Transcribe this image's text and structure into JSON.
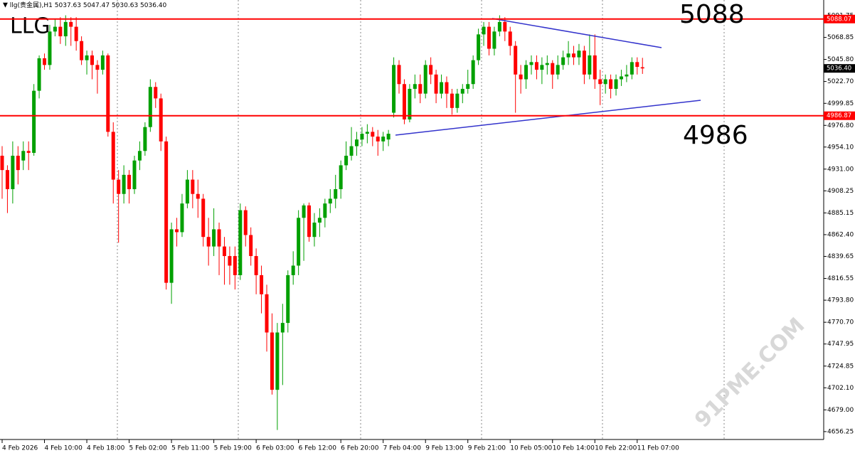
{
  "chart_data": {
    "type": "candlestick",
    "symbol": "llg(贵金属),H1",
    "last_bar_labels": [
      "5037.63",
      "5047.47",
      "5030.63",
      "5036.40"
    ],
    "annotation": "LLG",
    "watermark": "91PME.COM",
    "up_color": "#00a000",
    "down_color": "#ff0000",
    "categories": [
      "4 Feb 2026",
      null,
      null,
      null,
      null,
      null,
      null,
      null,
      "4 Feb 10:00",
      null,
      null,
      null,
      null,
      null,
      null,
      null,
      "4 Feb 18:00",
      null,
      null,
      null,
      null,
      null,
      null,
      null,
      "5 Feb 02:00",
      null,
      null,
      null,
      null,
      null,
      null,
      null,
      "5 Feb 11:00",
      null,
      null,
      null,
      null,
      null,
      null,
      null,
      "5 Feb 19:00",
      null,
      null,
      null,
      null,
      null,
      null,
      null,
      "6 Feb 03:00",
      null,
      null,
      null,
      null,
      null,
      null,
      null,
      "6 Feb 12:00",
      null,
      null,
      null,
      null,
      null,
      null,
      null,
      "6 Feb 20:00",
      null,
      null,
      null,
      null,
      null,
      null,
      null,
      "7 Feb 04:00",
      null,
      null,
      null,
      null,
      null,
      null,
      null,
      "9 Feb 13:00",
      null,
      null,
      null,
      null,
      null,
      null,
      null,
      "9 Feb 21:00",
      null,
      null,
      null,
      null,
      null,
      null,
      null,
      "10 Feb 05:00",
      null,
      null,
      null,
      null,
      null,
      null,
      null,
      "10 Feb 14:00",
      null,
      null,
      null,
      null,
      null,
      null,
      null,
      "10 Feb 22:00",
      null,
      null,
      null,
      null,
      null,
      null,
      null,
      "11 Feb 07:00",
      null
    ],
    "open": [
      4945,
      4930,
      4910,
      4945,
      4940,
      4950,
      4948,
      5013,
      5047,
      5040,
      5075,
      5080,
      5070,
      5085,
      5080,
      5065,
      5045,
      5050,
      5040,
      5035,
      5050,
      4970,
      4920,
      4905,
      4925,
      4910,
      4940,
      4950,
      4975,
      5017,
      5005,
      4960,
      4812,
      4868,
      4865,
      4895,
      4920,
      4905,
      4900,
      4860,
      4850,
      4868,
      4850,
      4840,
      4840,
      4820,
      4888,
      4862,
      4840,
      4820,
      4800,
      4760,
      4700,
      4760,
      4770,
      4820,
      4830,
      4880,
      4893,
      4860,
      4875,
      4880,
      4895,
      4900,
      4910,
      4935,
      4945,
      4955,
      4962,
      4968,
      4970,
      4965,
      4960,
      4962,
      4990,
      5040,
      5020,
      4983,
      5015,
      5020,
      5010,
      5040,
      5030,
      5010,
      5022,
      5010,
      4995,
      5010,
      5015,
      5020,
      5045,
      5072,
      5080,
      5057,
      5075,
      5085,
      5075,
      5060,
      5030,
      5025,
      5040,
      5043,
      5035,
      5040,
      5042,
      5030,
      5040,
      5048,
      5052,
      5048,
      5055,
      5030,
      5050,
      5025,
      5020,
      5025,
      5015,
      5025,
      5028,
      5030,
      5043,
      5037.63
    ],
    "high": [
      4955,
      4935,
      4960,
      4955,
      4960,
      4960,
      5020,
      5050,
      5052,
      5082,
      5088,
      5090,
      5092,
      5090,
      5090,
      5070,
      5055,
      5055,
      5045,
      5055,
      5052,
      4980,
      4930,
      4935,
      4930,
      4945,
      4960,
      4980,
      5025,
      5022,
      5010,
      4965,
      4875,
      4880,
      4905,
      4930,
      4930,
      4920,
      4905,
      4880,
      4890,
      4875,
      4860,
      4850,
      4850,
      4895,
      4892,
      4870,
      4848,
      4830,
      4810,
      4780,
      4770,
      4790,
      4825,
      4845,
      4888,
      4895,
      4896,
      4885,
      4890,
      4900,
      4910,
      4925,
      4940,
      4960,
      4975,
      4970,
      4975,
      4978,
      4975,
      4972,
      4970,
      4972,
      5048,
      5045,
      5025,
      5020,
      5030,
      5030,
      5045,
      5048,
      5035,
      5030,
      5028,
      5015,
      5015,
      5020,
      5035,
      5050,
      5078,
      5085,
      5085,
      5080,
      5092,
      5090,
      5080,
      5065,
      5040,
      5045,
      5050,
      5050,
      5048,
      5050,
      5045,
      5050,
      5055,
      5065,
      5060,
      5062,
      5060,
      5072,
      5072,
      5035,
      5030,
      5030,
      5030,
      5035,
      5040,
      5048,
      5048,
      5047.47
    ],
    "low": [
      4900,
      4885,
      4895,
      4915,
      4930,
      4930,
      4945,
      5005,
      5035,
      5035,
      5070,
      5062,
      5060,
      5060,
      5055,
      5040,
      5030,
      5025,
      5010,
      5030,
      4965,
      4895,
      4854,
      4895,
      4895,
      4905,
      4930,
      4945,
      4970,
      4995,
      4950,
      4805,
      4790,
      4850,
      4860,
      4890,
      4890,
      4880,
      4850,
      4830,
      4840,
      4820,
      4810,
      4810,
      4805,
      4815,
      4850,
      4830,
      4800,
      4780,
      4740,
      4695,
      4658,
      4705,
      4760,
      4810,
      4820,
      4835,
      4855,
      4850,
      4860,
      4870,
      4885,
      4890,
      4900,
      4930,
      4940,
      4945,
      4955,
      4958,
      4955,
      4945,
      4950,
      4955,
      4985,
      5010,
      4978,
      4980,
      5005,
      5000,
      5005,
      5020,
      5000,
      5005,
      4995,
      4988,
      4990,
      5000,
      5010,
      5015,
      5040,
      5060,
      5050,
      5050,
      5070,
      5065,
      5050,
      4990,
      5010,
      5015,
      5030,
      5025,
      5020,
      5030,
      5015,
      5025,
      5035,
      5040,
      5040,
      5040,
      5020,
      5025,
      5015,
      4998,
      5010,
      5005,
      5008,
      5018,
      5022,
      5025,
      5030,
      5030.63
    ],
    "close": [
      4930,
      4910,
      4945,
      4930,
      4950,
      4948,
      5013,
      5047,
      5040,
      5075,
      5080,
      5070,
      5085,
      5080,
      5065,
      5045,
      5050,
      5040,
      5035,
      5050,
      4970,
      4920,
      4905,
      4925,
      4910,
      4940,
      4950,
      4975,
      5017,
      5005,
      4960,
      4812,
      4868,
      4865,
      4895,
      4920,
      4905,
      4900,
      4860,
      4850,
      4868,
      4850,
      4840,
      4830,
      4820,
      4888,
      4862,
      4840,
      4820,
      4800,
      4760,
      4700,
      4760,
      4770,
      4820,
      4830,
      4880,
      4893,
      4860,
      4875,
      4880,
      4895,
      4900,
      4910,
      4935,
      4945,
      4955,
      4962,
      4968,
      4970,
      4965,
      4960,
      4965,
      4968,
      5040,
      5020,
      4983,
      5015,
      5020,
      5010,
      5040,
      5030,
      5010,
      5022,
      5010,
      4995,
      5010,
      5015,
      5020,
      5045,
      5072,
      5080,
      5057,
      5075,
      5085,
      5075,
      5060,
      5030,
      5025,
      5040,
      5043,
      5035,
      5040,
      5042,
      5030,
      5040,
      5048,
      5052,
      5048,
      5055,
      5030,
      5050,
      5025,
      5020,
      5025,
      5015,
      5025,
      5028,
      5030,
      5043,
      5038,
      5036.4
    ],
    "hlines": [
      {
        "value": 5088.07,
        "annotation": "5088",
        "color": "#ff0000"
      },
      {
        "value": 4986.87,
        "annotation": "4986",
        "color": "#ff0000"
      }
    ],
    "ylim": [
      4648,
      5108
    ],
    "yticks": [
      5091.75,
      5068.85,
      {
        "value": 5045.8,
        "label": "5045.80"
      },
      {
        "value": 5022.7,
        "label": "5022.70"
      },
      4999.85,
      {
        "value": 4976.8,
        "label": "4976.80"
      },
      {
        "value": 4954.1,
        "label": "4954.10"
      },
      {
        "value": 4931,
        "label": "4931.00"
      },
      4908.25,
      4885.15,
      {
        "value": 4862.4,
        "label": "4862.40"
      },
      4839.65,
      4816.55,
      {
        "value": 4793.8,
        "label": "4793.80"
      },
      {
        "value": 4770.7,
        "label": "4770.70"
      },
      4747.95,
      4724.85,
      {
        "value": 4702.1,
        "label": "4702.10"
      },
      {
        "value": 4679,
        "label": "4679.00"
      },
      4656.25
    ]
  }
}
